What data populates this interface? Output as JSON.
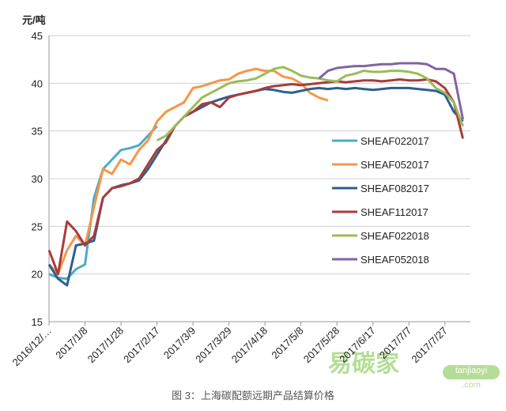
{
  "chart_data": {
    "type": "line",
    "y_label": "元/吨",
    "caption": "图 3：上海碳配额远期产品结算价格",
    "watermark": {
      "brand": "易碳家",
      "site": "tanjiaoyi",
      "domain": ".com"
    },
    "categories": [
      "2016/12/…",
      null,
      null,
      null,
      "2017/1/8",
      null,
      null,
      null,
      "2017/1/28",
      null,
      null,
      null,
      "2017/2/17",
      null,
      null,
      null,
      "2017/3/9",
      null,
      null,
      null,
      "2017/3/29",
      null,
      null,
      null,
      "2017/4/18",
      null,
      null,
      null,
      "2017/5/8",
      null,
      null,
      null,
      "2017/5/28",
      null,
      null,
      null,
      "2017/6/17",
      null,
      null,
      null,
      "2017/7/7",
      null,
      null,
      null,
      "2017/7/27",
      null,
      null
    ],
    "ylim": [
      15,
      45
    ],
    "yticks": [
      15,
      20,
      25,
      30,
      35,
      40,
      45
    ],
    "grid": true,
    "series": [
      {
        "name": "SHEAF022017",
        "color": "#4bacc6",
        "values": [
          20,
          19.6,
          19.5,
          20.5,
          21,
          28,
          31,
          32,
          33,
          33.2,
          33.5,
          34.5,
          35.5,
          null,
          null,
          null,
          null,
          null,
          null,
          null,
          null,
          null,
          null,
          null,
          null,
          null,
          null,
          null,
          null,
          null,
          null,
          null,
          null,
          null,
          null,
          null,
          null,
          null,
          null,
          null,
          null,
          null,
          null,
          null,
          null,
          null,
          null
        ]
      },
      {
        "name": "SHEAF052017",
        "color": "#f79646",
        "values": [
          21,
          20,
          22.5,
          24,
          23,
          27,
          31,
          30.5,
          32,
          31.5,
          33,
          34,
          36,
          37,
          37.5,
          38,
          39.5,
          39.7,
          40,
          40.3,
          40.4,
          41,
          41.3,
          41.5,
          41.3,
          41.3,
          40.7,
          40.5,
          40,
          39,
          38.5,
          38.2,
          null,
          null,
          null,
          null,
          null,
          null,
          null,
          null,
          null,
          null,
          null,
          null,
          null,
          null,
          null
        ]
      },
      {
        "name": "SHEAF082017",
        "color": "#2e5f8e",
        "values": [
          21,
          19.5,
          18.8,
          23,
          23.2,
          23.5,
          28,
          29,
          29.3,
          29.5,
          29.8,
          31,
          32.5,
          34,
          35.5,
          36.5,
          37,
          37.5,
          38,
          38.3,
          38.6,
          38.8,
          39,
          39.2,
          39.4,
          39.3,
          39.1,
          39,
          39.2,
          39.4,
          39.5,
          39.4,
          39.5,
          39.4,
          39.5,
          39.4,
          39.3,
          39.4,
          39.5,
          39.5,
          39.5,
          39.4,
          39.3,
          39.2,
          38.8,
          37,
          36
        ]
      },
      {
        "name": "SHEAF112017",
        "color": "#a83c3a",
        "values": [
          22.5,
          20,
          25.5,
          24.5,
          23,
          24,
          28,
          29,
          29.2,
          29.5,
          30,
          31.5,
          33,
          33.8,
          35.5,
          36.5,
          37,
          37.8,
          38,
          37.5,
          38.5,
          38.8,
          39,
          39.2,
          39.5,
          39.7,
          39.8,
          39.9,
          39.8,
          39.9,
          40,
          40.1,
          40.2,
          40.1,
          40.2,
          40.3,
          40.3,
          40.2,
          40.3,
          40.4,
          40.3,
          40.3,
          40.4,
          40.2,
          39.5,
          38,
          34.2
        ]
      },
      {
        "name": "SHEAF022018",
        "color": "#9bbb59",
        "values": [
          null,
          null,
          null,
          null,
          null,
          null,
          null,
          null,
          null,
          null,
          null,
          null,
          34,
          34.5,
          35.5,
          36.5,
          37.5,
          38.5,
          39,
          39.5,
          40,
          40.2,
          40.3,
          40.5,
          41,
          41.5,
          41.7,
          41.3,
          40.8,
          40.6,
          40.5,
          40.3,
          40.2,
          40.8,
          41,
          41.3,
          41.2,
          41.2,
          41.3,
          41.3,
          41.2,
          41,
          40.5,
          39.5,
          39,
          38,
          35.5
        ]
      },
      {
        "name": "SHEAF052018",
        "color": "#8064a2",
        "values": [
          null,
          null,
          null,
          null,
          null,
          null,
          null,
          null,
          null,
          null,
          null,
          null,
          null,
          null,
          null,
          null,
          null,
          null,
          null,
          null,
          null,
          null,
          null,
          null,
          null,
          null,
          null,
          null,
          null,
          null,
          40.5,
          41.3,
          41.6,
          41.7,
          41.8,
          41.8,
          41.9,
          42,
          42,
          42.1,
          42.1,
          42.1,
          42,
          41.5,
          41.5,
          41,
          36.2
        ]
      }
    ]
  }
}
